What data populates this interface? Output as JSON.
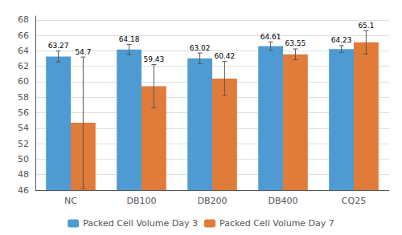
{
  "chart_data": {
    "type": "bar",
    "categories": [
      "NC",
      "DB100",
      "DB200",
      "DB400",
      "CQ25"
    ],
    "series": [
      {
        "name": "Packed Cell Volume Day 3",
        "color": "#4E9BD4",
        "values": [
          63.27,
          64.18,
          63.02,
          64.61,
          64.23
        ],
        "errors": [
          0.7,
          0.65,
          0.7,
          0.55,
          0.45
        ]
      },
      {
        "name": "Packed Cell Volume Day 7",
        "color": "#E07B39",
        "values": [
          54.7,
          59.43,
          60.42,
          63.55,
          65.1
        ],
        "errors": [
          8.5,
          2.8,
          2.2,
          0.7,
          1.5
        ]
      }
    ],
    "ylim": [
      46,
      68.5
    ],
    "yticks": [
      46,
      48,
      50,
      52,
      54,
      56,
      58,
      60,
      62,
      64,
      66,
      68
    ],
    "grid": true,
    "legend": "bottom",
    "data_labels": true
  }
}
